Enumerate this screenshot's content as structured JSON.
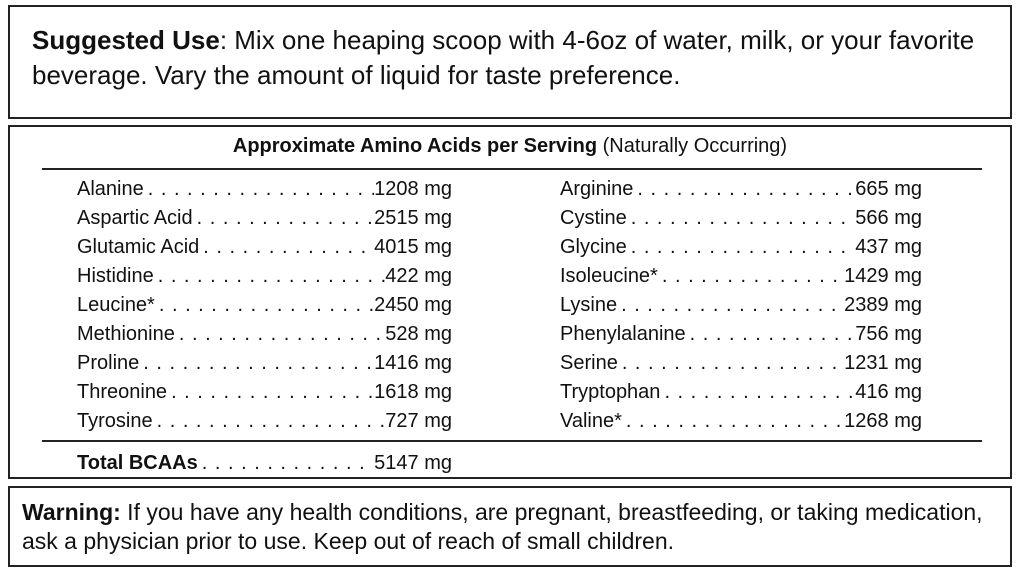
{
  "suggested_use": {
    "label": "Suggested Use",
    "text": ": Mix one heaping scoop with 4-6oz of water, milk, or your favorite beverage. Vary the amount of liquid for taste preference."
  },
  "amino_table": {
    "title": "Approximate Amino Acids per Serving",
    "subtitle": "(Naturally Occurring)",
    "left": [
      [
        "Alanine",
        "1208 mg"
      ],
      [
        "Aspartic Acid",
        "2515 mg"
      ],
      [
        "Glutamic Acid",
        "4015 mg"
      ],
      [
        "Histidine",
        "422 mg"
      ],
      [
        "Leucine*",
        "2450 mg"
      ],
      [
        "Methionine",
        "528 mg"
      ],
      [
        "Proline",
        "1416 mg"
      ],
      [
        "Threonine",
        "1618 mg"
      ],
      [
        "Tyrosine",
        "727 mg"
      ]
    ],
    "right": [
      [
        "Arginine",
        "665 mg"
      ],
      [
        "Cystine",
        "566 mg"
      ],
      [
        "Glycine",
        "437 mg"
      ],
      [
        "Isoleucine*",
        "1429 mg"
      ],
      [
        "Lysine",
        "2389 mg"
      ],
      [
        "Phenylalanine",
        "756 mg"
      ],
      [
        "Serine",
        "1231 mg"
      ],
      [
        "Tryptophan",
        "416 mg"
      ],
      [
        "Valine*",
        "1268 mg"
      ]
    ],
    "total": [
      "Total BCAAs",
      "5147 mg"
    ]
  },
  "warning": {
    "label": "Warning:",
    "text": " If you have any health conditions, are pregnant, breastfeeding, or taking medication, ask a physician prior to use. Keep out of reach of small children."
  }
}
